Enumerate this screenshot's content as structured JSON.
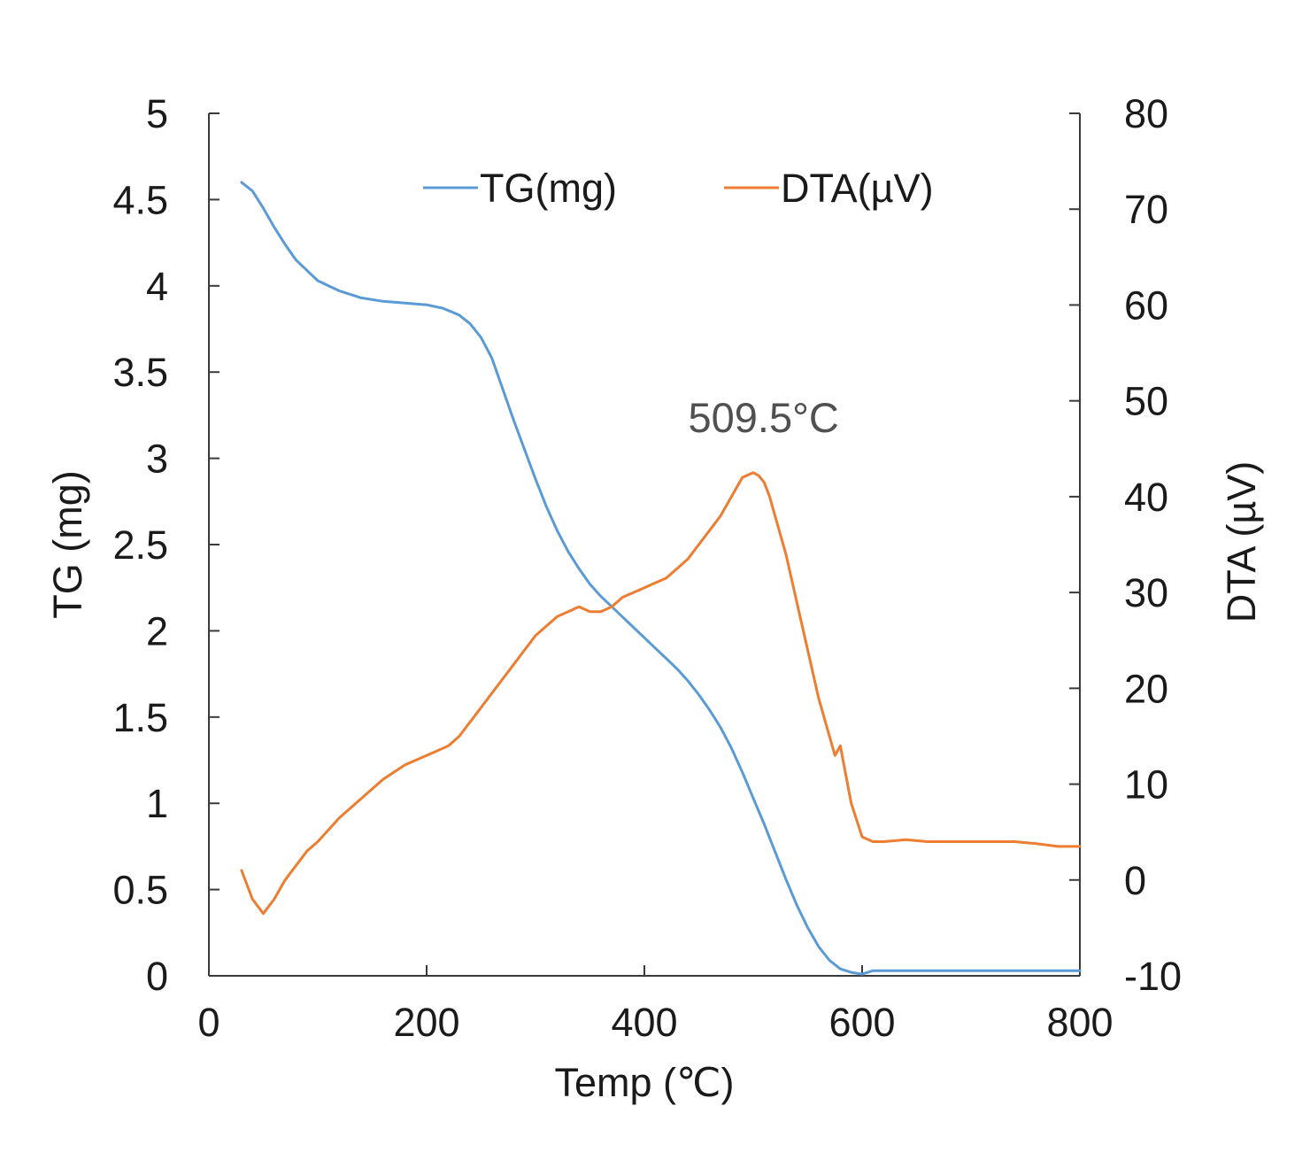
{
  "chart_data": {
    "type": "line",
    "title": "",
    "xlabel": "Temp (℃)",
    "ylabel_left": "TG (mg)",
    "ylabel_right": "DTA (µV)",
    "xlim": [
      0,
      800
    ],
    "ylim_left": [
      0,
      5
    ],
    "ylim_right": [
      -10,
      80
    ],
    "x_ticks": [
      "0",
      "200",
      "400",
      "600",
      "800"
    ],
    "y_left_ticks": [
      "0",
      "0.5",
      "1",
      "1.5",
      "2",
      "2.5",
      "3",
      "3.5",
      "4",
      "4.5",
      "5"
    ],
    "y_right_ticks": [
      "-10",
      "0",
      "10",
      "20",
      "30",
      "40",
      "50",
      "60",
      "70",
      "80"
    ],
    "grid": false,
    "legend_position": "top",
    "annotation": {
      "text": "509.5°C",
      "x": 509.5,
      "y": 46
    },
    "series": [
      {
        "name": "TG(mg)",
        "axis": "left",
        "color": "#5b9bd5",
        "x": [
          30,
          40,
          50,
          60,
          70,
          80,
          100,
          120,
          140,
          160,
          180,
          200,
          215,
          230,
          240,
          250,
          260,
          270,
          280,
          290,
          300,
          310,
          320,
          330,
          340,
          350,
          360,
          370,
          380,
          390,
          400,
          410,
          420,
          430,
          440,
          450,
          460,
          470,
          480,
          490,
          500,
          510,
          520,
          530,
          540,
          550,
          560,
          570,
          580,
          590,
          600,
          610,
          700,
          800
        ],
        "y": [
          4.6,
          4.55,
          4.45,
          4.34,
          4.24,
          4.15,
          4.03,
          3.97,
          3.93,
          3.91,
          3.9,
          3.89,
          3.87,
          3.83,
          3.78,
          3.7,
          3.58,
          3.4,
          3.22,
          3.05,
          2.88,
          2.72,
          2.58,
          2.46,
          2.36,
          2.27,
          2.2,
          2.14,
          2.08,
          2.02,
          1.96,
          1.9,
          1.84,
          1.78,
          1.71,
          1.63,
          1.54,
          1.44,
          1.32,
          1.18,
          1.03,
          0.88,
          0.72,
          0.56,
          0.41,
          0.28,
          0.17,
          0.09,
          0.04,
          0.02,
          0.01,
          0.03,
          0.03,
          0.03
        ]
      },
      {
        "name": "DTA(µV)",
        "axis": "right",
        "color": "#ed7d31",
        "x": [
          30,
          40,
          50,
          60,
          70,
          80,
          90,
          100,
          120,
          140,
          160,
          180,
          200,
          210,
          220,
          230,
          240,
          250,
          260,
          270,
          280,
          290,
          300,
          310,
          320,
          330,
          340,
          350,
          360,
          370,
          380,
          390,
          400,
          410,
          420,
          430,
          440,
          450,
          460,
          470,
          480,
          490,
          500,
          505,
          510,
          515,
          520,
          530,
          540,
          550,
          560,
          570,
          575,
          580,
          585,
          590,
          600,
          610,
          620,
          640,
          660,
          680,
          700,
          720,
          740,
          760,
          780,
          800
        ],
        "y": [
          1,
          -2,
          -3.5,
          -2,
          0,
          1.5,
          3,
          4,
          6.5,
          8.5,
          10.5,
          12,
          13,
          13.5,
          14,
          15,
          16.5,
          18,
          19.5,
          21,
          22.5,
          24,
          25.5,
          26.5,
          27.5,
          28,
          28.5,
          28,
          28,
          28.5,
          29.5,
          30,
          30.5,
          31,
          31.5,
          32.5,
          33.5,
          35,
          36.5,
          38,
          40,
          42,
          42.5,
          42.2,
          41.5,
          40,
          38,
          34,
          29,
          24,
          19,
          15,
          13,
          14,
          11,
          8,
          4.5,
          4,
          4,
          4.2,
          4,
          4,
          4,
          4,
          4,
          3.8,
          3.5,
          3.5
        ]
      }
    ]
  }
}
